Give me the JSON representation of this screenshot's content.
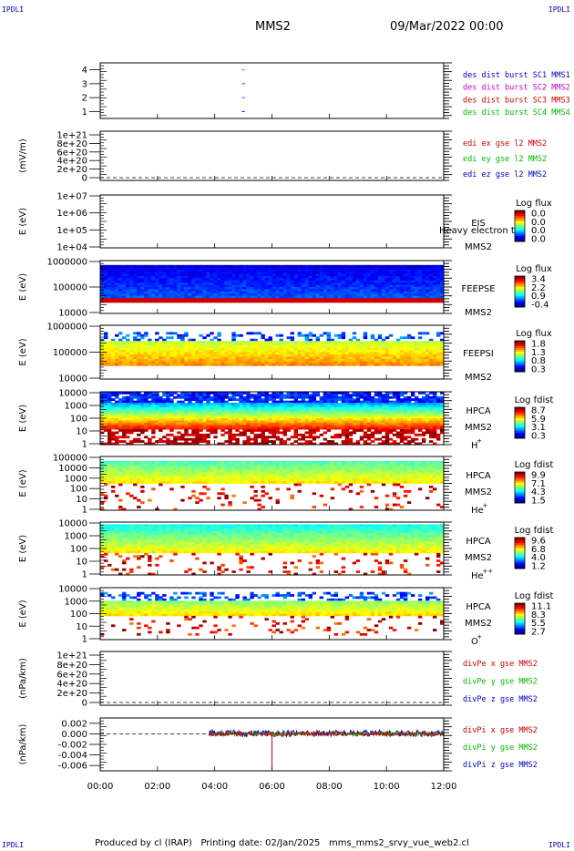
{
  "corner_labels": {
    "top_left": "IPDLI",
    "top_right": "IPDLI",
    "bottom_left": "IPDLI",
    "bottom_right": "IPDLI"
  },
  "header": {
    "spacecraft": "MMS2",
    "date": "09/Mar/2022 00:00"
  },
  "footer": {
    "produced_by": "Produced by cl (IRAP)",
    "printing_date": "Printing date: 02/Jan/2025",
    "filename": "mms_mms2_srvy_vue_web2.cl"
  },
  "colors": {
    "mms1": "#0000cc",
    "mms2": "#cc00cc",
    "mms3": "#cc0000",
    "mms4": "#00bb00",
    "x": "#cc0000",
    "y": "#00bb00",
    "z": "#0000cc"
  },
  "chart_data": {
    "type": "heatmap",
    "time_axis": {
      "range_hours": [
        0,
        12
      ],
      "tick_labels": [
        "00:00",
        "02:00",
        "04:00",
        "06:00",
        "08:00",
        "10:00",
        "12:00"
      ]
    },
    "panels": [
      {
        "id": "burst",
        "kind": "burst",
        "ylabel": "",
        "ylim": [
          0.5,
          4.5
        ],
        "yticks": [
          "4",
          "3",
          "2",
          "1"
        ],
        "labels": [
          {
            "text": "des dist burst SC1 MMS1",
            "color": "#0000cc"
          },
          {
            "text": "des dist burst SC2 MMS2",
            "color": "#cc00cc"
          },
          {
            "text": "des dist burst SC3 MMS3",
            "color": "#cc0000"
          },
          {
            "text": "des dist burst SC4 MMS4",
            "color": "#00bb00"
          }
        ],
        "markers": [
          {
            "sc": 4,
            "hour": 5.0
          },
          {
            "sc": 3,
            "hour": 5.0
          },
          {
            "sc": 2,
            "hour": 5.0
          },
          {
            "sc": 1,
            "hour": 5.0
          }
        ]
      },
      {
        "id": "edi",
        "kind": "empty_line",
        "ylabel": "(mV/m)",
        "yticks": [
          "1e+21",
          "8e+20",
          "6e+20",
          "4e+20",
          "2e+20",
          "0"
        ],
        "labels": [
          {
            "text": "edi ex gse l2 MMS2",
            "color": "#cc0000"
          },
          {
            "text": "edi ey gse l2 MMS2",
            "color": "#00bb00"
          },
          {
            "text": "edi ez gse l2 MMS2",
            "color": "#0000cc"
          }
        ]
      },
      {
        "id": "eis",
        "kind": "spectrogram_empty",
        "ylabel": "E (eV)",
        "yticks": [
          "1e+07",
          "1e+06",
          "1e+05",
          "1e+04"
        ],
        "instrument": [
          "EIS",
          "MMS2"
        ],
        "overlay_text": "Heavy electron to",
        "cbar_title": "Log flux",
        "cbar_ticks": [
          "0.0",
          "0.0",
          "0.0",
          "0.0"
        ]
      },
      {
        "id": "feepse",
        "kind": "spectrogram",
        "ylabel": "E (eV)",
        "yticks": [
          "1000000",
          "100000",
          "10000"
        ],
        "instrument": [
          "FEEPSE",
          "MMS2"
        ],
        "cbar_title": "Log flux",
        "cbar_ticks": [
          "3.4",
          "2.2",
          "0.9",
          "-0.4"
        ]
      },
      {
        "id": "feepsi",
        "kind": "spectrogram",
        "ylabel": "E (eV)",
        "yticks": [
          "1000000",
          "100000",
          "10000"
        ],
        "instrument": [
          "FEEPSI",
          "MMS2"
        ],
        "cbar_title": "Log flux",
        "cbar_ticks": [
          "1.8",
          "1.3",
          "0.8",
          "0.3"
        ]
      },
      {
        "id": "hpca_h",
        "kind": "spectrogram",
        "ylabel": "E (eV)",
        "yticks": [
          "10000",
          "1000",
          "100",
          "10",
          "1"
        ],
        "instrument": [
          "HPCA",
          "MMS2",
          "H",
          "+"
        ],
        "cbar_title": "Log fdist",
        "cbar_ticks": [
          "8.7",
          "5.9",
          "3.1",
          "0.3"
        ]
      },
      {
        "id": "hpca_he",
        "kind": "spectrogram",
        "ylabel": "E (eV)",
        "yticks": [
          "100000",
          "10000",
          "1000",
          "100",
          "10",
          "1"
        ],
        "instrument": [
          "HPCA",
          "MMS2",
          "He",
          "+"
        ],
        "cbar_title": "Log fdist",
        "cbar_ticks": [
          "9.9",
          "7.1",
          "4.3",
          "1.5"
        ]
      },
      {
        "id": "hpca_hepp",
        "kind": "spectrogram",
        "ylabel": "E (eV)",
        "yticks": [
          "10000",
          "1000",
          "100",
          "10",
          "1"
        ],
        "instrument": [
          "HPCA",
          "MMS2",
          "He",
          "++"
        ],
        "cbar_title": "Log fdist",
        "cbar_ticks": [
          "9.6",
          "6.8",
          "4.0",
          "1.2"
        ]
      },
      {
        "id": "hpca_o",
        "kind": "spectrogram",
        "ylabel": "E (eV)",
        "yticks": [
          "10000",
          "1000",
          "100",
          "10",
          "1"
        ],
        "instrument": [
          "HPCA",
          "MMS2",
          "O",
          "+"
        ],
        "cbar_title": "Log fdist",
        "cbar_ticks": [
          "11.1",
          "8.3",
          "5.5",
          "2.7"
        ]
      },
      {
        "id": "divpe",
        "kind": "empty_line",
        "ylabel": "(nPa/km)",
        "yticks": [
          "1e+21",
          "8e+20",
          "6e+20",
          "4e+20",
          "2e+20",
          "0"
        ],
        "labels": [
          {
            "text": "divPe x gse MMS2",
            "color": "#cc0000"
          },
          {
            "text": "divPe y gse MMS2",
            "color": "#00bb00"
          },
          {
            "text": "divPe z gse MMS2",
            "color": "#0000cc"
          }
        ]
      },
      {
        "id": "divpi",
        "kind": "lines",
        "ylabel": "(nPa/km)",
        "ylim": [
          -0.007,
          0.003
        ],
        "yticks": [
          "0.002",
          "0.000",
          "-0.002",
          "-0.004",
          "-0.006"
        ],
        "ytick_values": [
          0.002,
          0.0,
          -0.002,
          -0.004,
          -0.006
        ],
        "data_start_hour": 3.8,
        "data_end_hour": 12.0,
        "spike": {
          "hour": 6.0,
          "value": -0.0068
        },
        "labels": [
          {
            "text": "divPi x gse MMS2",
            "color": "#cc0000"
          },
          {
            "text": "divPi y gse MMS2",
            "color": "#00bb00"
          },
          {
            "text": "divPi z gse MMS2",
            "color": "#0000cc"
          }
        ]
      }
    ]
  }
}
